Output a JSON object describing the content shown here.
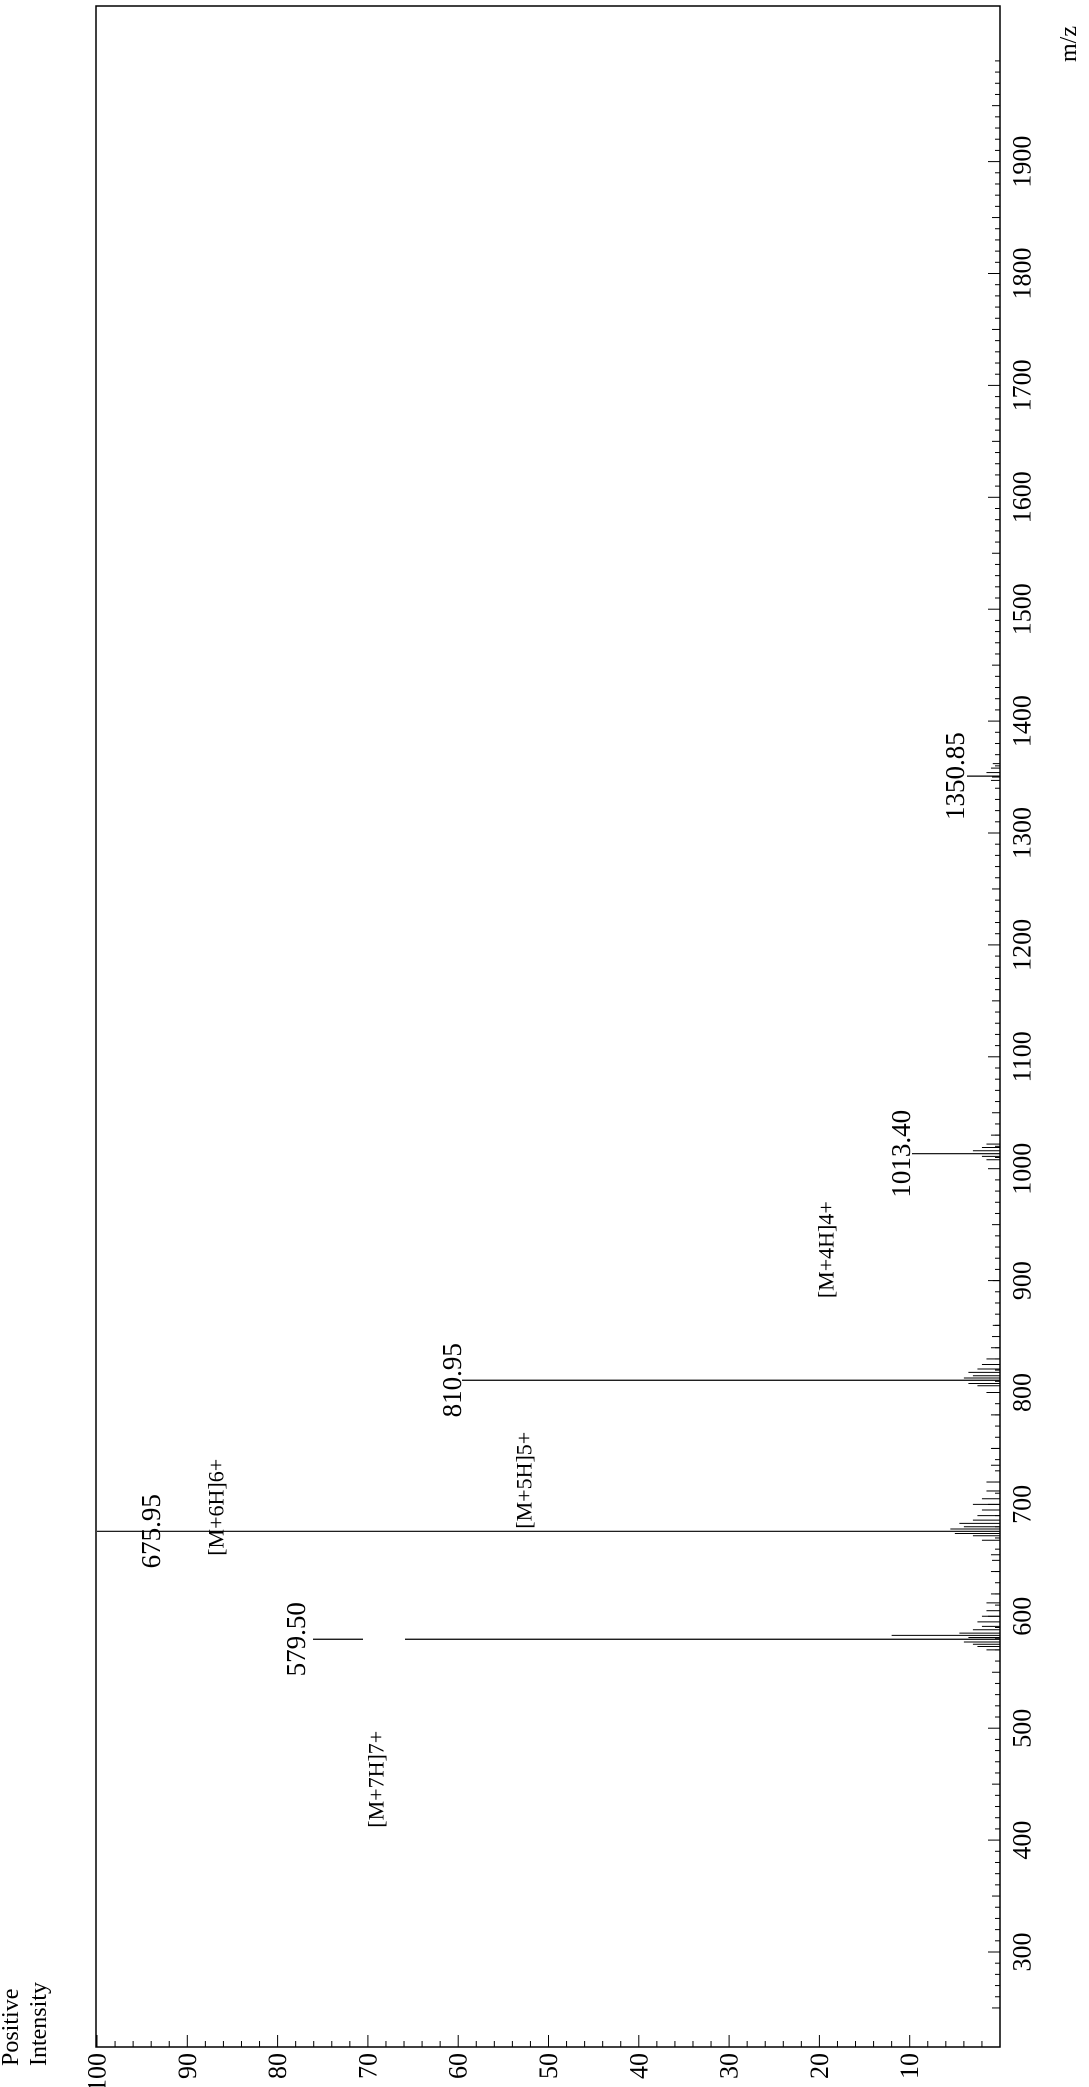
{
  "chart_data": {
    "type": "bar",
    "title": "",
    "xlabel": "m/z",
    "ylabel_lines": [
      "Positive",
      "Intensity"
    ],
    "xlim": [
      250,
      1990
    ],
    "ylim": [
      0,
      100
    ],
    "x_ticks": [
      "300",
      "400",
      "500",
      "600",
      "700",
      "800",
      "900",
      "1000",
      "1100",
      "1200",
      "1300",
      "1400",
      "1500",
      "1600",
      "1700",
      "1800",
      "1900"
    ],
    "y_ticks": [
      "10",
      "20",
      "30",
      "40",
      "50",
      "60",
      "70",
      "80",
      "90",
      "100"
    ],
    "peaks": [
      {
        "mz": 579.5,
        "intensity": 67.0,
        "value_label": "579.50",
        "ion_label": "[M+7H]7+"
      },
      {
        "mz": 675.95,
        "intensity": 100.0,
        "value_label": "675.95",
        "ion_label": "[M+6H]6+"
      },
      {
        "mz": 810.95,
        "intensity": 59.0,
        "value_label": "810.95",
        "ion_label": "[M+5H]5+"
      },
      {
        "mz": 1013.4,
        "intensity": 9.5,
        "value_label": "1013.40",
        "ion_label": "[M+4H]4+"
      },
      {
        "mz": 1350.85,
        "intensity": 2.5,
        "value_label": "1350.85",
        "ion_label": ""
      }
    ],
    "minor_peaks": [
      {
        "mz": 570,
        "intensity": 1.5
      },
      {
        "mz": 573,
        "intensity": 2.5
      },
      {
        "mz": 575,
        "intensity": 3.0
      },
      {
        "mz": 577,
        "intensity": 4.0
      },
      {
        "mz": 581,
        "intensity": 3.5
      },
      {
        "mz": 583,
        "intensity": 12.0
      },
      {
        "mz": 585,
        "intensity": 4.5
      },
      {
        "mz": 588,
        "intensity": 3.0
      },
      {
        "mz": 591,
        "intensity": 2.0
      },
      {
        "mz": 595,
        "intensity": 2.5
      },
      {
        "mz": 600,
        "intensity": 2.0
      },
      {
        "mz": 605,
        "intensity": 1.5
      },
      {
        "mz": 612,
        "intensity": 1.5
      },
      {
        "mz": 620,
        "intensity": 1.0
      },
      {
        "mz": 640,
        "intensity": 1.0
      },
      {
        "mz": 655,
        "intensity": 1.0
      },
      {
        "mz": 668,
        "intensity": 2.0
      },
      {
        "mz": 672,
        "intensity": 3.0
      },
      {
        "mz": 674,
        "intensity": 5.0
      },
      {
        "mz": 678,
        "intensity": 5.5
      },
      {
        "mz": 680,
        "intensity": 4.0
      },
      {
        "mz": 683,
        "intensity": 4.5
      },
      {
        "mz": 686,
        "intensity": 3.0
      },
      {
        "mz": 690,
        "intensity": 2.5
      },
      {
        "mz": 695,
        "intensity": 2.0
      },
      {
        "mz": 700,
        "intensity": 3.0
      },
      {
        "mz": 705,
        "intensity": 2.0
      },
      {
        "mz": 712,
        "intensity": 1.5
      },
      {
        "mz": 720,
        "intensity": 1.5
      },
      {
        "mz": 735,
        "intensity": 1.0
      },
      {
        "mz": 750,
        "intensity": 1.0
      },
      {
        "mz": 780,
        "intensity": 1.0
      },
      {
        "mz": 800,
        "intensity": 1.5
      },
      {
        "mz": 806,
        "intensity": 2.5
      },
      {
        "mz": 808,
        "intensity": 3.5
      },
      {
        "mz": 813,
        "intensity": 4.0
      },
      {
        "mz": 815,
        "intensity": 3.0
      },
      {
        "mz": 818,
        "intensity": 3.5
      },
      {
        "mz": 821,
        "intensity": 2.5
      },
      {
        "mz": 825,
        "intensity": 2.0
      },
      {
        "mz": 830,
        "intensity": 1.5
      },
      {
        "mz": 840,
        "intensity": 1.0
      },
      {
        "mz": 860,
        "intensity": 0.8
      },
      {
        "mz": 900,
        "intensity": 0.8
      },
      {
        "mz": 1008,
        "intensity": 1.5
      },
      {
        "mz": 1011,
        "intensity": 2.0
      },
      {
        "mz": 1016,
        "intensity": 3.0
      },
      {
        "mz": 1019,
        "intensity": 2.0
      },
      {
        "mz": 1022,
        "intensity": 1.5
      },
      {
        "mz": 1030,
        "intensity": 1.0
      },
      {
        "mz": 1347,
        "intensity": 1.0
      },
      {
        "mz": 1354,
        "intensity": 1.5
      },
      {
        "mz": 1358,
        "intensity": 1.0
      },
      {
        "mz": 1362,
        "intensity": 0.8
      }
    ],
    "grid": false,
    "legend": "none",
    "orientation": "rotated 90° clockwise (m/z axis runs bottom to top, intensity axis runs right to left)"
  }
}
